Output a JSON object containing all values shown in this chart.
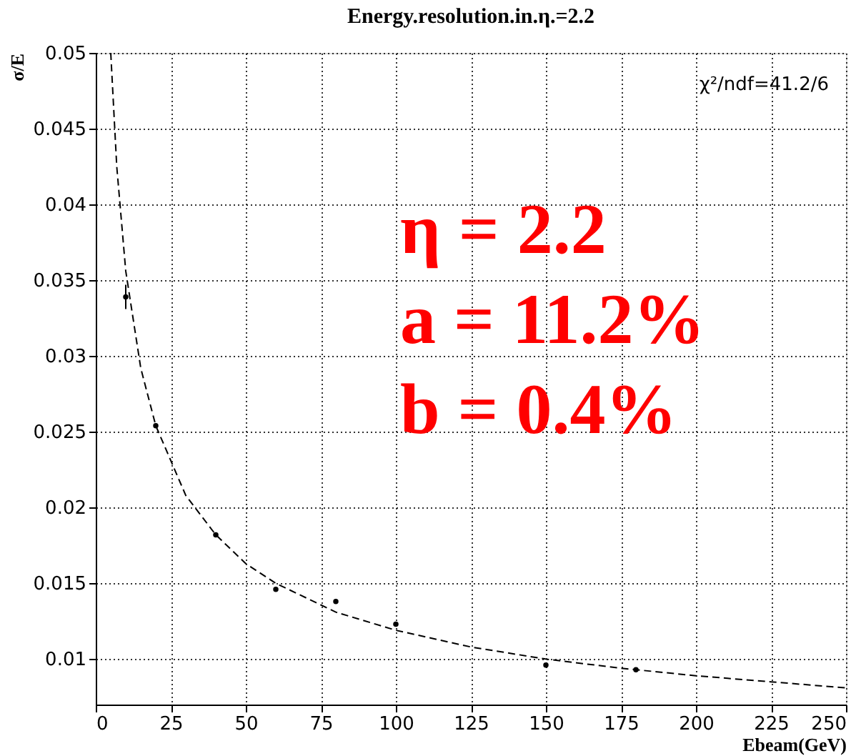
{
  "chart_data": {
    "type": "scatter",
    "title": "Energy.resolution.in.η.=2.2",
    "xlabel": "Ebeam(GeV)",
    "ylabel": "σ/E",
    "xlim": [
      0,
      250
    ],
    "ylim": [
      0.007,
      0.05
    ],
    "xticks": [
      0,
      25,
      50,
      75,
      100,
      125,
      150,
      175,
      200,
      225,
      250
    ],
    "yticks": [
      0.01,
      0.015,
      0.02,
      0.025,
      0.03,
      0.035,
      0.04,
      0.045,
      0.05
    ],
    "grid": true,
    "marker": "circle",
    "series": [
      {
        "color": "#000000",
        "x": [
          10,
          20,
          40,
          60,
          80,
          100,
          150,
          180
        ],
        "values": [
          0.0339,
          0.0254,
          0.0182,
          0.0146,
          0.0138,
          0.0123,
          0.0096,
          0.0093
        ],
        "errors": [
          0.0008,
          null,
          null,
          null,
          null,
          null,
          null,
          null
        ]
      },
      {
        "type": "line",
        "color": "#000000",
        "line_style": "dashed",
        "marker": "none",
        "x": [
          5,
          7,
          10,
          15,
          20,
          30,
          40,
          50,
          60,
          80,
          100,
          125,
          150,
          175,
          200,
          225,
          250
        ],
        "values": [
          0.05,
          0.0425,
          0.0356,
          0.0292,
          0.0254,
          0.0208,
          0.0182,
          0.0163,
          0.015,
          0.0131,
          0.0119,
          0.0108,
          0.01,
          0.0094,
          0.0089,
          0.0085,
          0.0081
        ]
      }
    ],
    "annotations": [
      "χ²/ndf=41.2/6",
      "η = 2.2",
      "a = 11.2%",
      "b = 0.4%"
    ]
  }
}
